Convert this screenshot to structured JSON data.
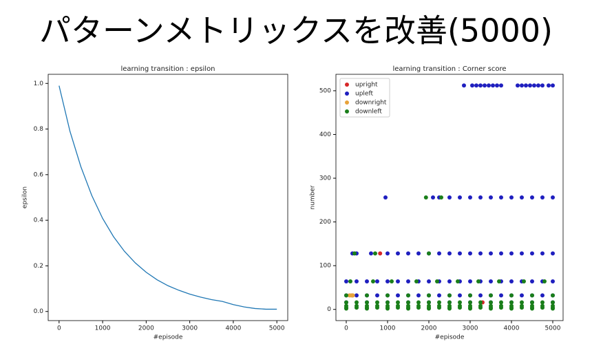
{
  "slide_title": "パターンメトリックスを改善(5000)",
  "chart_data": [
    {
      "type": "line",
      "title": "learning transition : epsilon",
      "xlabel": "#episode",
      "ylabel": "epsilon",
      "x": [
        0,
        250,
        500,
        750,
        1000,
        1250,
        1500,
        1750,
        2000,
        2250,
        2500,
        2750,
        3000,
        3250,
        3500,
        3750,
        4000,
        4250,
        4500,
        4750,
        5000
      ],
      "series": [
        {
          "name": "epsilon",
          "color": "#1f77b4",
          "values": [
            0.99,
            0.79,
            0.635,
            0.509,
            0.408,
            0.328,
            0.264,
            0.213,
            0.172,
            0.139,
            0.113,
            0.093,
            0.076,
            0.063,
            0.052,
            0.044,
            0.03,
            0.02,
            0.013,
            0.01,
            0.01
          ]
        }
      ],
      "xlim": [
        -250,
        5250
      ],
      "ylim": [
        -0.04,
        1.04
      ],
      "xticks": [
        0,
        1000,
        2000,
        3000,
        4000,
        5000
      ],
      "yticks": [
        {
          "value": 0,
          "label": "0.0"
        },
        0.2,
        0.4,
        0.6,
        0.8,
        {
          "value": 1,
          "label": "1.0"
        }
      ]
    },
    {
      "type": "scatter",
      "title": "learning transition : Corner score",
      "xlabel": "#episode",
      "ylabel": "number",
      "legend": "upper left",
      "series": [
        {
          "name": "upright",
          "color": "#d62728",
          "x": [
            820,
            150,
            3300
          ],
          "values": [
            128,
            32,
            16
          ]
        },
        {
          "name": "upleft",
          "color": "#1f1fbf",
          "x": [
            2850,
            3050,
            3150,
            3250,
            3350,
            3450,
            3550,
            3650,
            3750,
            4150,
            4250,
            4350,
            4450,
            4550,
            4650,
            4750,
            4900,
            5000,
            950,
            2100,
            2250,
            2500,
            2750,
            3000,
            3250,
            3500,
            3750,
            4000,
            4250,
            4500,
            4750,
            5000,
            150,
            250,
            600,
            1000,
            1250,
            1500,
            1750,
            2000,
            2250,
            2500,
            2750,
            3000,
            3250,
            3500,
            3750,
            4000,
            4250,
            4500,
            4750,
            5000,
            0,
            250,
            500,
            750,
            1000,
            1250,
            1500,
            1750,
            2000,
            2250,
            2500,
            2750,
            3000,
            3250,
            3500,
            3750,
            4000,
            4250,
            4500,
            4750,
            5000,
            0,
            250,
            500,
            750,
            1000,
            1250,
            1500,
            1750,
            2000,
            2250,
            2500,
            2750,
            3000,
            3250,
            3500,
            3750,
            4000,
            4250,
            4500,
            4750,
            5000,
            0,
            500,
            1000,
            1500,
            2000,
            2500,
            3000,
            3500,
            4000,
            4500,
            5000
          ],
          "values": [
            512,
            512,
            512,
            512,
            512,
            512,
            512,
            512,
            512,
            512,
            512,
            512,
            512,
            512,
            512,
            512,
            512,
            512,
            256,
            256,
            256,
            256,
            256,
            256,
            256,
            256,
            256,
            256,
            256,
            256,
            256,
            256,
            128,
            128,
            128,
            128,
            128,
            128,
            128,
            128,
            128,
            128,
            128,
            128,
            128,
            128,
            128,
            128,
            128,
            128,
            128,
            128,
            64,
            64,
            64,
            64,
            64,
            64,
            64,
            64,
            64,
            64,
            64,
            64,
            64,
            64,
            64,
            64,
            64,
            64,
            64,
            64,
            64,
            32,
            32,
            32,
            32,
            32,
            32,
            32,
            32,
            32,
            32,
            32,
            32,
            32,
            32,
            32,
            32,
            32,
            32,
            32,
            32,
            32,
            16,
            16,
            16,
            16,
            16,
            16,
            16,
            16,
            16,
            16,
            16
          ]
        },
        {
          "name": "downright",
          "color": "#e8a33a",
          "x": [
            80,
            120,
            160
          ],
          "values": [
            32,
            32,
            32
          ]
        },
        {
          "name": "downleft",
          "color": "#1a7f1a",
          "x": [
            1930,
            2300,
            200,
            700,
            2000,
            100,
            650,
            1100,
            1700,
            2200,
            2700,
            3200,
            3700,
            4300,
            4800,
            0,
            500,
            1000,
            1500,
            2000,
            2500,
            3000,
            3500,
            4000,
            4500,
            5000,
            0,
            250,
            500,
            750,
            1000,
            1250,
            1500,
            1750,
            2000,
            2250,
            2500,
            2750,
            3000,
            3250,
            3500,
            3750,
            4000,
            4250,
            4500,
            4750,
            5000,
            0,
            250,
            500,
            750,
            1000,
            1250,
            1500,
            1750,
            2000,
            2250,
            2500,
            2750,
            3000,
            3250,
            3500,
            3750,
            4000,
            4250,
            4500,
            4750,
            5000,
            0,
            250,
            500,
            750,
            1000,
            1250,
            1500,
            1750,
            2000,
            2250,
            2500,
            2750,
            3000,
            3250,
            3500,
            3750,
            4000,
            4250,
            4500,
            4750,
            5000,
            0,
            500,
            1000,
            1500,
            2000,
            2500,
            3000,
            3500,
            4000,
            4500,
            5000
          ],
          "values": [
            256,
            256,
            128,
            128,
            128,
            64,
            64,
            64,
            64,
            64,
            64,
            64,
            64,
            64,
            64,
            32,
            32,
            32,
            32,
            32,
            32,
            32,
            32,
            32,
            32,
            32,
            16,
            16,
            16,
            16,
            16,
            16,
            16,
            16,
            16,
            16,
            16,
            16,
            16,
            16,
            16,
            16,
            16,
            16,
            16,
            16,
            16,
            8,
            8,
            8,
            8,
            8,
            8,
            8,
            8,
            8,
            8,
            8,
            8,
            8,
            8,
            8,
            8,
            8,
            8,
            8,
            8,
            8,
            4,
            4,
            4,
            4,
            4,
            4,
            4,
            4,
            4,
            4,
            4,
            4,
            4,
            4,
            4,
            4,
            4,
            4,
            4,
            4,
            4,
            2,
            2,
            2,
            2,
            2,
            2,
            2,
            2,
            2,
            2,
            2
          ]
        }
      ],
      "xlim": [
        -250,
        5250
      ],
      "ylim": [
        -25.6,
        537.6
      ],
      "xticks": [
        0,
        1000,
        2000,
        3000,
        4000,
        5000
      ],
      "yticks": [
        0,
        100,
        200,
        300,
        400,
        500
      ]
    }
  ]
}
